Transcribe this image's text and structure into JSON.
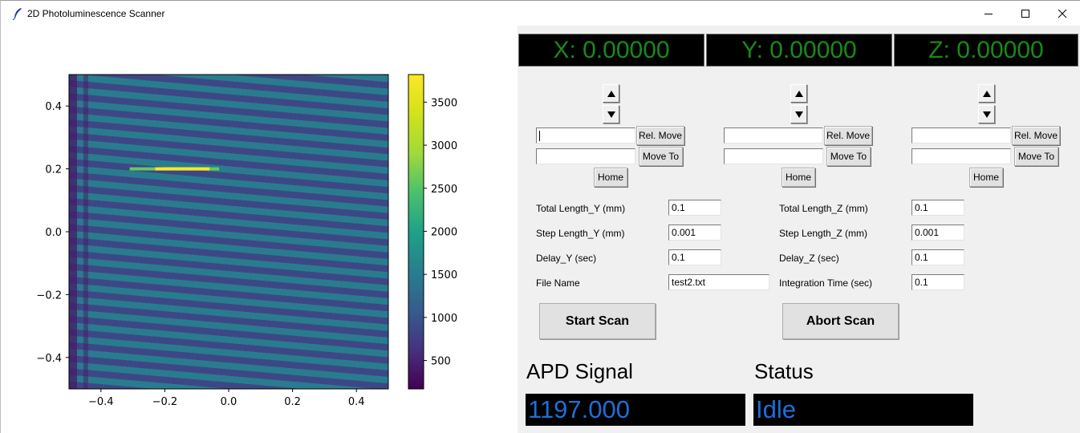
{
  "window": {
    "title": "2D Photoluminescence Scanner",
    "controls": [
      "minimize-icon",
      "maximize-icon",
      "close-icon"
    ]
  },
  "coords": {
    "x": "X: 0.00000",
    "y": "Y: 0.00000",
    "z": "Z: 0.00000"
  },
  "axis_controls": [
    {
      "axis": "X",
      "rel_value": "",
      "abs_value": "",
      "rel_label": "Rel. Move",
      "abs_label": "Move To",
      "home_label": "Home"
    },
    {
      "axis": "Y",
      "rel_value": "",
      "abs_value": "",
      "rel_label": "Rel. Move",
      "abs_label": "Move To",
      "home_label": "Home"
    },
    {
      "axis": "Z",
      "rel_value": "",
      "abs_value": "",
      "rel_label": "Rel. Move",
      "abs_label": "Move To",
      "home_label": "Home"
    }
  ],
  "scan_params": {
    "left": [
      {
        "label": "Total Length_Y (mm)",
        "value": "0.1"
      },
      {
        "label": "Step Length_Y (mm)",
        "value": "0.001"
      },
      {
        "label": "Delay_Y (sec)",
        "value": "0.1"
      },
      {
        "label": "File Name",
        "value": "test2.txt"
      }
    ],
    "right": [
      {
        "label": "Total Length_Z (mm)",
        "value": "0.1"
      },
      {
        "label": "Step Length_Z (mm)",
        "value": "0.001"
      },
      {
        "label": "Delay_Z (sec)",
        "value": "0.1"
      },
      {
        "label": "Integration Time (sec)",
        "value": "0.1"
      }
    ]
  },
  "buttons": {
    "start": "Start Scan",
    "abort": "Abort Scan"
  },
  "apd": {
    "label": "APD Signal",
    "value": "1197.000"
  },
  "status": {
    "label": "Status",
    "value": "Idle"
  },
  "colors": {
    "coord_text": "#178a17",
    "readout_text": "#1e6fd9",
    "readout_bg": "#000000"
  },
  "chart_data": {
    "type": "heatmap",
    "colormap": "viridis",
    "x_ticks": [
      "−0.4",
      "−0.2",
      "0.0",
      "0.2",
      "0.4"
    ],
    "y_ticks": [
      "0.4",
      "0.2",
      "0.0",
      "−0.2",
      "−0.4"
    ],
    "xlim": [
      -0.5,
      0.5
    ],
    "ylim": [
      -0.5,
      0.5
    ],
    "colorbar_ticks": [
      "3500",
      "3000",
      "2500",
      "2000",
      "1500",
      "1000",
      "500"
    ],
    "colorbar_range": [
      170,
      3820
    ],
    "stripe_count": 24,
    "stripe_low": 850,
    "stripe_high": 1500,
    "edge_column_value": 400,
    "bright_line": {
      "y": 0.2,
      "x_start": -0.31,
      "x_end": -0.03,
      "peak": 3800
    }
  }
}
